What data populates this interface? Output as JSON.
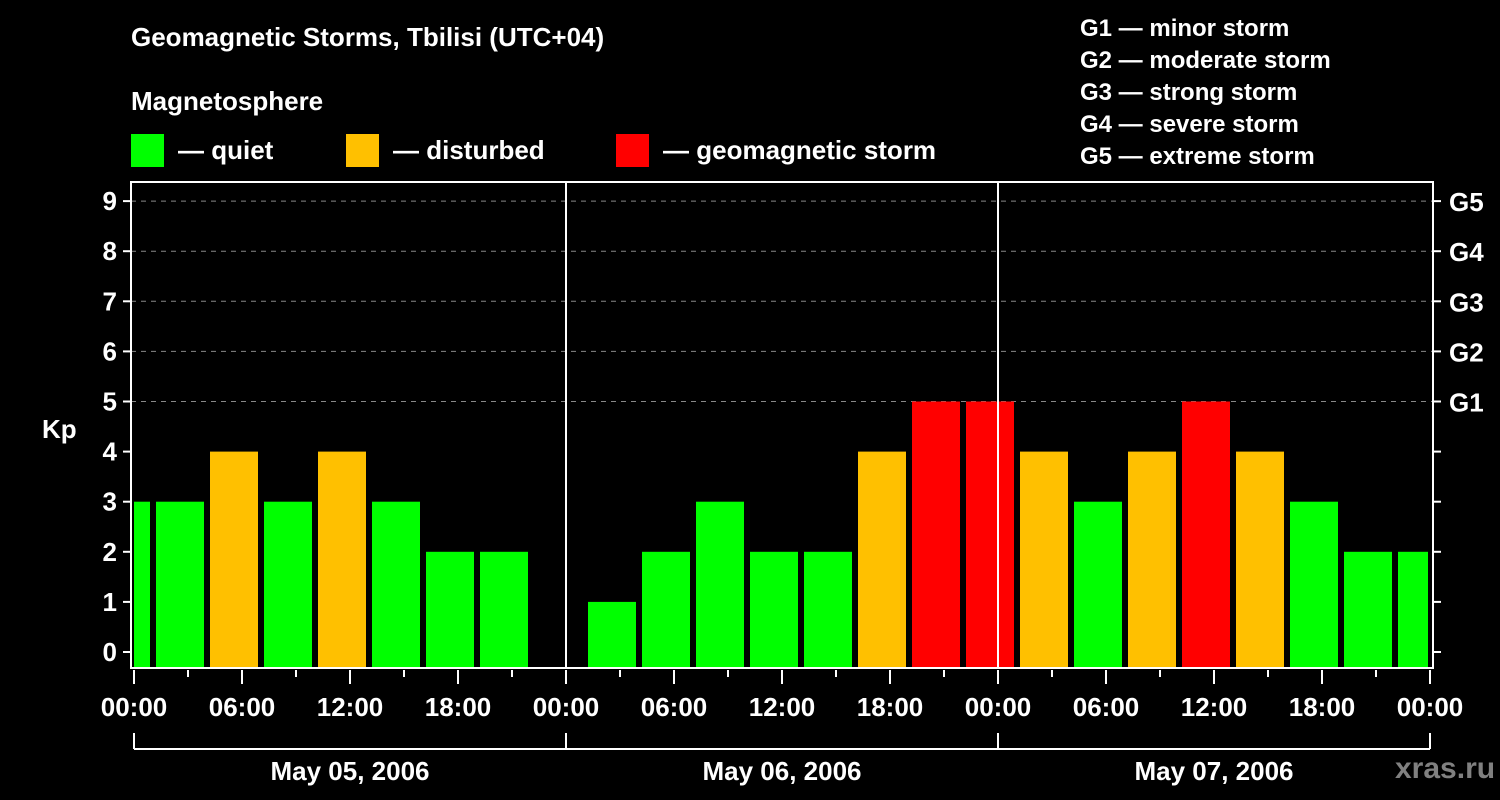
{
  "header": {
    "title": "Geomagnetic Storms, Tbilisi (UTC+04)",
    "subtitle": "Magnetosphere"
  },
  "legend": {
    "items": [
      {
        "label": "— quiet",
        "color": "#00ff00"
      },
      {
        "label": "— disturbed",
        "color": "#ffc000"
      },
      {
        "label": "— geomagnetic storm",
        "color": "#ff0000"
      }
    ]
  },
  "g_scale_legend": [
    "G1 — minor storm",
    "G2 — moderate storm",
    "G3 — strong storm",
    "G4 — severe storm",
    "G5 — extreme storm"
  ],
  "watermark": "xras.ru",
  "chart_data": {
    "type": "bar",
    "title": "Geomagnetic Storms, Tbilisi (UTC+04)",
    "subtitle": "Magnetosphere",
    "xlabel": "",
    "ylabel": "Kp",
    "ylim": [
      0,
      9
    ],
    "yticks": [
      0,
      1,
      2,
      3,
      4,
      5,
      6,
      7,
      8,
      9
    ],
    "right_axis_labels": [
      {
        "kp": 5,
        "label": "G1"
      },
      {
        "kp": 6,
        "label": "G2"
      },
      {
        "kp": 7,
        "label": "G3"
      },
      {
        "kp": 8,
        "label": "G4"
      },
      {
        "kp": 9,
        "label": "G5"
      }
    ],
    "grid": "dashed horizontal lines at Kp 5-9",
    "x_tick_labels": [
      "00:00",
      "06:00",
      "12:00",
      "18:00",
      "00:00",
      "06:00",
      "12:00",
      "18:00",
      "00:00",
      "06:00",
      "12:00",
      "18:00",
      "00:00"
    ],
    "date_labels": [
      "May 05, 2006",
      "May 06, 2006",
      "May 07, 2006"
    ],
    "colors": {
      "quiet": "#00ff00",
      "disturbed": "#ffc000",
      "storm": "#ff0000"
    },
    "bar_interval_hours": 3,
    "series": [
      {
        "name": "Kp",
        "bars": [
          {
            "day": "May 05, 2006",
            "start": "00:00",
            "kp": 3,
            "level": "quiet",
            "partial": true
          },
          {
            "day": "May 05, 2006",
            "start": "01:00",
            "kp": 3,
            "level": "quiet"
          },
          {
            "day": "May 05, 2006",
            "start": "04:00",
            "kp": 4,
            "level": "disturbed"
          },
          {
            "day": "May 05, 2006",
            "start": "07:00",
            "kp": 3,
            "level": "quiet"
          },
          {
            "day": "May 05, 2006",
            "start": "10:00",
            "kp": 4,
            "level": "disturbed"
          },
          {
            "day": "May 05, 2006",
            "start": "13:00",
            "kp": 3,
            "level": "quiet"
          },
          {
            "day": "May 05, 2006",
            "start": "16:00",
            "kp": 2,
            "level": "quiet"
          },
          {
            "day": "May 05, 2006",
            "start": "19:00",
            "kp": 2,
            "level": "quiet"
          },
          {
            "day": "May 06, 2006",
            "start": "01:00",
            "kp": 1,
            "level": "quiet"
          },
          {
            "day": "May 06, 2006",
            "start": "04:00",
            "kp": 2,
            "level": "quiet"
          },
          {
            "day": "May 06, 2006",
            "start": "07:00",
            "kp": 3,
            "level": "quiet"
          },
          {
            "day": "May 06, 2006",
            "start": "10:00",
            "kp": 2,
            "level": "quiet"
          },
          {
            "day": "May 06, 2006",
            "start": "13:00",
            "kp": 2,
            "level": "quiet"
          },
          {
            "day": "May 06, 2006",
            "start": "16:00",
            "kp": 4,
            "level": "disturbed"
          },
          {
            "day": "May 06, 2006",
            "start": "19:00",
            "kp": 5,
            "level": "storm"
          },
          {
            "day": "May 06, 2006",
            "start": "22:00",
            "kp": 5,
            "level": "storm"
          },
          {
            "day": "May 07, 2006",
            "start": "01:00",
            "kp": 4,
            "level": "disturbed"
          },
          {
            "day": "May 07, 2006",
            "start": "04:00",
            "kp": 3,
            "level": "quiet"
          },
          {
            "day": "May 07, 2006",
            "start": "07:00",
            "kp": 4,
            "level": "disturbed"
          },
          {
            "day": "May 07, 2006",
            "start": "10:00",
            "kp": 5,
            "level": "storm"
          },
          {
            "day": "May 07, 2006",
            "start": "13:00",
            "kp": 4,
            "level": "disturbed"
          },
          {
            "day": "May 07, 2006",
            "start": "16:00",
            "kp": 3,
            "level": "quiet"
          },
          {
            "day": "May 07, 2006",
            "start": "19:00",
            "kp": 2,
            "level": "quiet"
          },
          {
            "day": "May 07, 2006",
            "start": "22:00",
            "kp": 2,
            "level": "quiet",
            "partial": true
          }
        ]
      }
    ]
  }
}
